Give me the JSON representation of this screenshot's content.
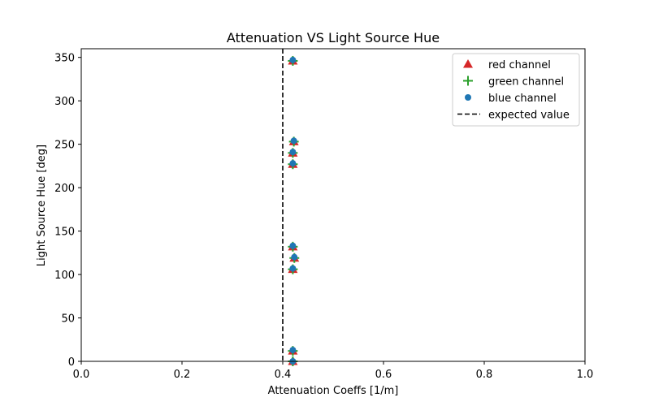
{
  "chart_data": {
    "type": "scatter",
    "title": "Attenuation VS Light Source Hue",
    "xlabel": "Attenuation Coeffs [1/m]",
    "ylabel": "Light Source Hue [deg]",
    "xlim": [
      0,
      1
    ],
    "ylim": [
      0,
      360
    ],
    "xticks": [
      "0.0",
      "0.2",
      "0.4",
      "0.6",
      "0.8",
      "1.0"
    ],
    "yticks": [
      "0",
      "50",
      "100",
      "150",
      "200",
      "250",
      "300",
      "350"
    ],
    "grid": false,
    "legend_position": "top-right",
    "series": [
      {
        "name": "red channel",
        "marker": "triangle",
        "color": "#d62728",
        "points": [
          [
            0.42,
            0
          ],
          [
            0.42,
            12
          ],
          [
            0.42,
            106
          ],
          [
            0.423,
            119
          ],
          [
            0.42,
            132
          ],
          [
            0.42,
            227
          ],
          [
            0.42,
            240
          ],
          [
            0.422,
            253
          ],
          [
            0.42,
            346
          ]
        ]
      },
      {
        "name": "green channel",
        "marker": "plus",
        "color": "#2ca02c",
        "points": [
          [
            0.42,
            0
          ],
          [
            0.42,
            12
          ],
          [
            0.42,
            106
          ],
          [
            0.423,
            119
          ],
          [
            0.42,
            132
          ],
          [
            0.42,
            227
          ],
          [
            0.42,
            240
          ],
          [
            0.422,
            253
          ],
          [
            0.42,
            346
          ]
        ]
      },
      {
        "name": "blue channel",
        "marker": "circle",
        "color": "#1f77b4",
        "points": [
          [
            0.42,
            0
          ],
          [
            0.42,
            13
          ],
          [
            0.42,
            107
          ],
          [
            0.423,
            120
          ],
          [
            0.42,
            133
          ],
          [
            0.42,
            228
          ],
          [
            0.42,
            241
          ],
          [
            0.422,
            254
          ],
          [
            0.42,
            347
          ]
        ]
      }
    ],
    "reference_lines": [
      {
        "name": "expected value",
        "orientation": "vertical",
        "x": 0.4,
        "style": "dashed",
        "color": "#000000"
      }
    ]
  }
}
